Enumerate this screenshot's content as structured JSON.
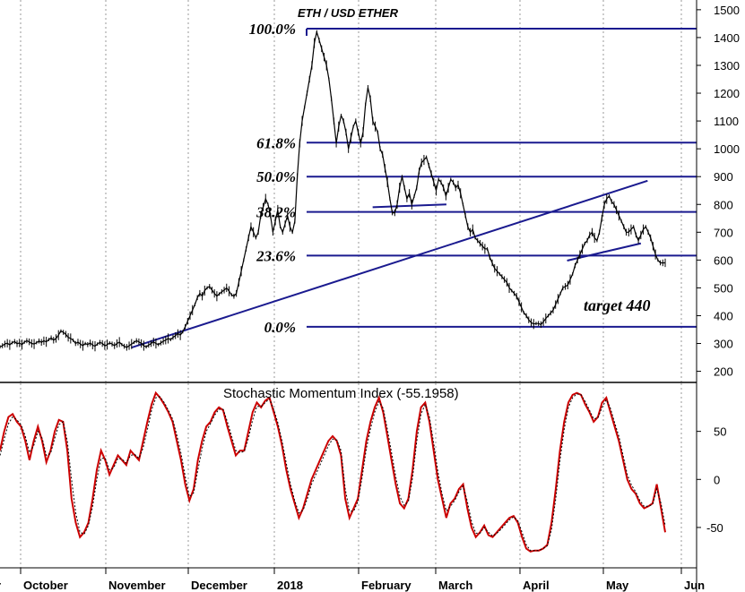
{
  "chart_data": [
    {
      "type": "line",
      "title": "ETH / USD ETHER",
      "y_axis": {
        "ticks": [
          200,
          300,
          400,
          500,
          600,
          700,
          800,
          900,
          1000,
          1100,
          1200,
          1300,
          1400,
          1500
        ],
        "range": [
          160,
          1535
        ]
      },
      "x_axis": {
        "months": [
          "October",
          "November",
          "December",
          "2018",
          "February",
          "March",
          "April",
          "May",
          "Jun"
        ]
      },
      "grid": "vertical dotted at month starts",
      "series": [
        {
          "values": [
            288,
            292,
            298,
            301,
            295,
            303,
            307,
            299,
            302,
            296,
            305,
            310,
            306,
            300,
            298,
            303,
            309,
            304,
            310,
            306,
            314,
            320,
            312,
            318,
            330,
            345,
            340,
            333,
            322,
            318,
            312,
            300,
            305,
            298,
            292,
            300,
            296,
            302,
            294,
            290,
            298,
            304,
            300,
            292,
            296,
            302,
            298,
            292,
            300,
            305,
            296,
            290,
            286,
            292,
            298,
            304,
            310,
            306,
            300,
            292,
            288,
            294,
            300,
            306,
            300,
            296,
            302,
            308,
            312,
            318,
            314,
            322,
            328,
            336,
            330,
            342,
            360,
            380,
            400,
            420,
            440,
            465,
            480,
            470,
            490,
            500,
            505,
            492,
            480,
            470,
            478,
            486,
            492,
            500,
            488,
            475,
            470,
            480,
            520,
            560,
            600,
            640,
            680,
            720,
            700,
            680,
            700,
            760,
            790,
            820,
            800,
            760,
            700,
            740,
            780,
            720,
            700,
            730,
            760,
            720,
            700,
            740,
            900,
            1020,
            1100,
            1150,
            1200,
            1250,
            1300,
            1380,
            1420,
            1390,
            1360,
            1330,
            1300,
            1250,
            1180,
            1100,
            1020,
            1080,
            1120,
            1100,
            1060,
            1000,
            1040,
            1080,
            1100,
            1060,
            1020,
            1060,
            1160,
            1220,
            1180,
            1100,
            1080,
            1060,
            1000,
            980,
            930,
            880,
            820,
            770,
            770,
            800,
            860,
            900,
            860,
            820,
            840,
            800,
            830,
            860,
            920,
            950,
            960,
            970,
            940,
            910,
            880,
            850,
            890,
            880,
            860,
            830,
            860,
            890,
            880,
            860,
            870,
            840,
            800,
            760,
            720,
            700,
            710,
            680,
            670,
            660,
            650,
            640,
            640,
            610,
            590,
            570,
            560,
            550,
            540,
            530,
            520,
            500,
            490,
            480,
            470,
            450,
            430,
            410,
            400,
            385,
            375,
            370,
            372,
            372,
            368,
            378,
            390,
            400,
            410,
            420,
            440,
            460,
            480,
            500,
            505,
            510,
            530,
            550,
            580,
            600,
            620,
            640,
            660,
            670,
            690,
            700,
            680,
            670,
            700,
            750,
            800,
            820,
            830,
            810,
            800,
            780,
            760,
            740,
            720,
            700,
            700,
            710,
            720,
            690,
            670,
            690,
            710,
            720,
            700,
            680,
            650,
            620,
            600,
            590,
            590,
            590
          ],
          "color": "#000000"
        }
      ],
      "fibonacci_levels": [
        {
          "label": "100.0%",
          "value": 1432
        },
        {
          "label": "61.8%",
          "value": 1022
        },
        {
          "label": "50.0%",
          "value": 900
        },
        {
          "label": "38.2%",
          "value": 773
        },
        {
          "label": "23.6%",
          "value": 616
        },
        {
          "label": "0.0%",
          "value": 360
        }
      ],
      "trendlines": [
        {
          "from": [
            0.185,
            285
          ],
          "to": [
            0.955,
            885
          ]
        },
        {
          "from": [
            0.835,
            598
          ],
          "to": [
            0.945,
            660
          ]
        },
        {
          "from": [
            0.545,
            790
          ],
          "to": [
            0.655,
            800
          ]
        }
      ],
      "annotations": [
        {
          "text": "target 440"
        }
      ],
      "colors": {
        "fib": "#1a1a8f",
        "price": "#000000"
      }
    },
    {
      "type": "line",
      "title": "Stochastic Momentum Index (-55.1958)",
      "y_axis": {
        "ticks": [
          -50,
          0,
          50
        ],
        "range": [
          -92,
          100
        ]
      },
      "series": [
        {
          "values": [
            30,
            50,
            65,
            68,
            60,
            55,
            40,
            20,
            40,
            55,
            40,
            18,
            30,
            50,
            62,
            60,
            30,
            -20,
            -45,
            -60,
            -55,
            -45,
            -20,
            10,
            30,
            20,
            5,
            15,
            25,
            20,
            15,
            30,
            25,
            20,
            40,
            60,
            78,
            90,
            85,
            78,
            70,
            60,
            40,
            20,
            -5,
            -22,
            -10,
            20,
            40,
            55,
            60,
            70,
            75,
            72,
            55,
            40,
            25,
            30,
            30,
            50,
            70,
            80,
            75,
            82,
            85,
            70,
            55,
            35,
            10,
            -10,
            -25,
            -40,
            -30,
            -15,
            0,
            10,
            20,
            30,
            40,
            45,
            40,
            25,
            -20,
            -40,
            -30,
            -20,
            10,
            40,
            60,
            75,
            85,
            70,
            45,
            20,
            -5,
            -25,
            -30,
            -20,
            10,
            50,
            75,
            80,
            60,
            30,
            0,
            -20,
            -40,
            -25,
            -20,
            -10,
            -5,
            -30,
            -50,
            -60,
            -55,
            -48,
            -58,
            -60,
            -55,
            -50,
            -45,
            -40,
            -38,
            -45,
            -60,
            -72,
            -75,
            -74,
            -74,
            -72,
            -68,
            -45,
            -10,
            30,
            60,
            80,
            88,
            90,
            88,
            78,
            70,
            60,
            65,
            80,
            85,
            70,
            55,
            40,
            20,
            0,
            -10,
            -15,
            -25,
            -30,
            -28,
            -25,
            -5,
            -30,
            -55
          ],
          "color": "#cc0000"
        },
        {
          "values": [
            25,
            42,
            58,
            65,
            62,
            57,
            45,
            28,
            35,
            50,
            43,
            25,
            27,
            43,
            57,
            60,
            40,
            0,
            -35,
            -55,
            -57,
            -48,
            -28,
            0,
            22,
            22,
            10,
            12,
            22,
            21,
            17,
            25,
            26,
            22,
            33,
            52,
            72,
            85,
            86,
            80,
            72,
            63,
            46,
            27,
            3,
            -18,
            -14,
            10,
            32,
            50,
            58,
            67,
            73,
            73,
            60,
            45,
            30,
            28,
            29,
            43,
            62,
            76,
            76,
            80,
            84,
            73,
            59,
            40,
            17,
            -5,
            -22,
            -35,
            -32,
            -20,
            -5,
            5,
            15,
            25,
            35,
            42,
            41,
            30,
            -10,
            -33,
            -33,
            -23,
            2,
            32,
            53,
            70,
            81,
            74,
            52,
            28,
            3,
            -18,
            -27,
            -23,
            2,
            40,
            68,
            78,
            65,
            38,
            8,
            -15,
            -33,
            -28,
            -22,
            -13,
            -7,
            -23,
            -44,
            -56,
            -56,
            -50,
            -55,
            -59,
            -56,
            -52,
            -47,
            -42,
            -39,
            -43,
            -55,
            -68,
            -74,
            -74,
            -74,
            -72,
            -69,
            -52,
            -20,
            20,
            52,
            75,
            85,
            89,
            88,
            81,
            72,
            63,
            64,
            75,
            83,
            74,
            59,
            45,
            25,
            5,
            -6,
            -13,
            -22,
            -28,
            -28,
            -26,
            -10,
            -25,
            -48
          ],
          "color": "#000000",
          "style": "dotted"
        }
      ]
    }
  ]
}
